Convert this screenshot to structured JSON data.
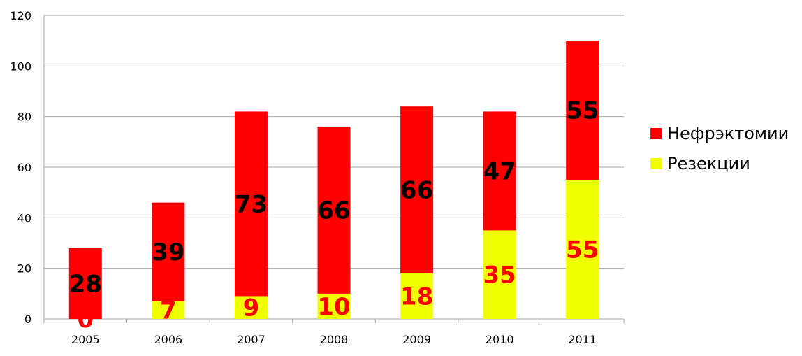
{
  "chart_data": {
    "type": "bar",
    "stacked": true,
    "categories": [
      "2005",
      "2006",
      "2007",
      "2008",
      "2009",
      "2010",
      "2011"
    ],
    "series": [
      {
        "name": "Резекции",
        "values": [
          0,
          7,
          9,
          10,
          18,
          35,
          55
        ],
        "color": "#f0ff00",
        "label_color": "#ff0000"
      },
      {
        "name": "Нефрэктомии",
        "values": [
          28,
          39,
          73,
          66,
          66,
          47,
          55
        ],
        "color": "#ff0000",
        "label_color": "#000000"
      }
    ],
    "legend_order": [
      "Нефрэктомии",
      "Резекции"
    ],
    "y_ticks": [
      "0",
      "20",
      "40",
      "60",
      "80",
      "100",
      "120"
    ],
    "ylim": [
      0,
      120
    ],
    "grid": true,
    "grid_color": "#a6a6a6",
    "legend_position": "right",
    "title": "",
    "xlabel": "",
    "ylabel": ""
  }
}
